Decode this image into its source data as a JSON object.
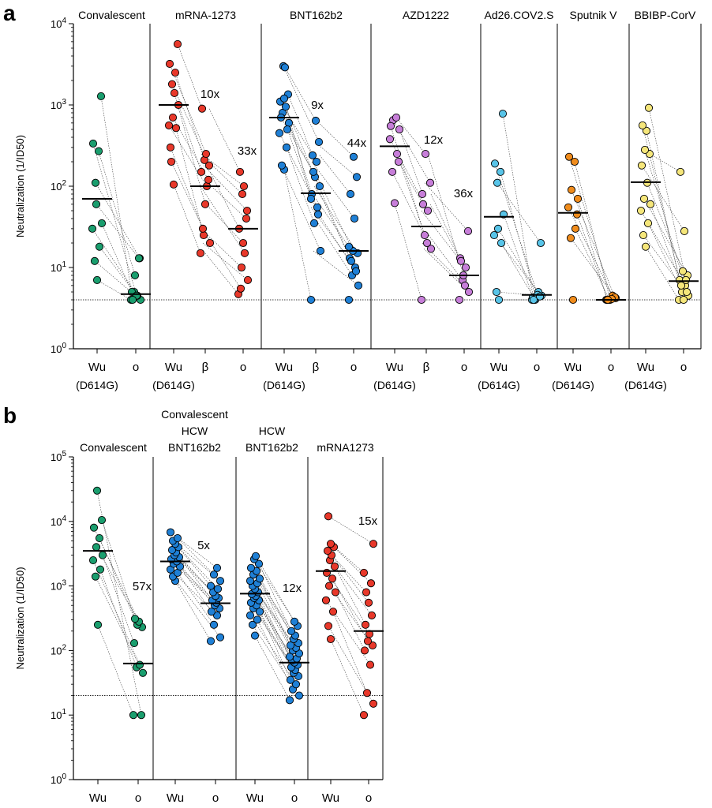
{
  "panels": [
    {
      "id": "a",
      "label": "a"
    },
    {
      "id": "b",
      "label": "b"
    }
  ],
  "chart_data": [
    {
      "type": "scatter",
      "panel": "a",
      "ylabel": "Neutralization (1/ID50)",
      "yscale": "log",
      "ylim": [
        1,
        10000
      ],
      "yticks": [
        {
          "v": 1,
          "m": "10",
          "e": "0"
        },
        {
          "v": 10,
          "m": "10",
          "e": "1"
        },
        {
          "v": 100,
          "m": "10",
          "e": "2"
        },
        {
          "v": 1000,
          "m": "10",
          "e": "3"
        },
        {
          "v": 10000,
          "m": "10",
          "e": "4"
        }
      ],
      "reference_line": 4,
      "groups": [
        {
          "name": "Convalescent",
          "color": "#1a9e6e",
          "cats": [
            "Wu",
            "o"
          ],
          "subs": [
            "(D614G)",
            ""
          ],
          "series": [
            [
              7,
              12,
              18,
              30,
              35,
              110,
              270,
              335,
              1280,
              60
            ],
            [
              4,
              4,
              5,
              4.5,
              5,
              13,
              8,
              4.5,
              4,
              13
            ]
          ],
          "medians": [
            70,
            4.7
          ],
          "folds": []
        },
        {
          "name": "mRNA-1273",
          "color": "#e8382a",
          "cats": [
            "Wu",
            "β",
            "o"
          ],
          "subs": [
            "(D614G)",
            "",
            ""
          ],
          "series": [
            [
              105,
              200,
              520,
              560,
              1000,
              1800,
              2500,
              3200,
              5600,
              700,
              1400,
              300
            ],
            [
              15,
              20,
              25,
              100,
              150,
              180,
              210,
              250,
              900,
              120,
              60,
              30
            ],
            [
              4.7,
              7,
              10,
              15,
              30,
              50,
              80,
              100,
              150,
              40,
              20,
              5.5
            ]
          ],
          "medians": [
            1000,
            100,
            30
          ],
          "folds": [
            "10x",
            "33x"
          ]
        },
        {
          "name": "BNT162b2",
          "color": "#1f80d6",
          "cats": [
            "Wu",
            "β",
            "o"
          ],
          "subs": [
            "(D614G)",
            "",
            ""
          ],
          "series": [
            [
              160,
              180,
              300,
              450,
              600,
              800,
              950,
              1100,
              1350,
              3000,
              2900,
              700,
              500,
              1200
            ],
            [
              4,
              16,
              35,
              55,
              80,
              100,
              130,
              200,
              240,
              350,
              640,
              150,
              45,
              70
            ],
            [
              4,
              6,
              8,
              10,
              13,
              15,
              16,
              40,
              80,
              130,
              230,
              12,
              9,
              18
            ]
          ],
          "medians": [
            700,
            82,
            16
          ],
          "folds": [
            "9x",
            "44x"
          ]
        },
        {
          "name": "AZD1222",
          "color": "#c77ed9",
          "cats": [
            "Wu",
            "β",
            "o"
          ],
          "subs": [
            "(D614G)",
            "",
            ""
          ],
          "series": [
            [
              62,
              150,
              250,
              380,
              500,
              650,
              700,
              550,
              200
            ],
            [
              4,
              17,
              25,
              50,
              80,
              110,
              250,
              20,
              60
            ],
            [
              4,
              5,
              7,
              10,
              13,
              28,
              8,
              6,
              12
            ]
          ],
          "medians": [
            310,
            32,
            8
          ],
          "folds": [
            "12x",
            "36x"
          ]
        },
        {
          "name": "Ad26.COV2.S",
          "color": "#58c4e8",
          "cats": [
            "Wu",
            "o"
          ],
          "subs": [
            "(D614G)",
            ""
          ],
          "series": [
            [
              4,
              5,
              20,
              25,
              45,
              110,
              150,
              190,
              780,
              30
            ],
            [
              4,
              4.5,
              4,
              5,
              4.3,
              20,
              4.2,
              4.6,
              4,
              4.4
            ]
          ],
          "medians": [
            42,
            4.6
          ],
          "folds": []
        },
        {
          "name": "Sputnik V",
          "color": "#f08c1c",
          "cats": [
            "Wu",
            "o"
          ],
          "subs": [
            "(D614G)",
            ""
          ],
          "series": [
            [
              4,
              23,
              30,
              55,
              70,
              90,
              200,
              230,
              45
            ],
            [
              4,
              4.2,
              4,
              4.5,
              4,
              4.3,
              4,
              4.1,
              4
            ]
          ],
          "medians": [
            47,
            4
          ],
          "folds": []
        },
        {
          "name": "BBIBP-CorV",
          "color": "#f5e67a",
          "cats": [
            "Wu",
            "o"
          ],
          "subs": [
            "(D614G)",
            ""
          ],
          "series": [
            [
              18,
              25,
              35,
              50,
              60,
              70,
              110,
              180,
              250,
              280,
              480,
              560,
              920
            ],
            [
              4,
              4.5,
              5,
              6,
              7,
              8,
              9,
              28,
              150,
              5,
              4,
              6,
              7
            ]
          ],
          "medians": [
            112,
            6.8
          ],
          "folds": []
        }
      ]
    },
    {
      "type": "scatter",
      "panel": "b",
      "ylabel": "Neutralization (1/ID50)",
      "yscale": "log",
      "ylim": [
        1,
        100000
      ],
      "yticks": [
        {
          "v": 1,
          "m": "10",
          "e": "0"
        },
        {
          "v": 10,
          "m": "10",
          "e": "1"
        },
        {
          "v": 100,
          "m": "10",
          "e": "2"
        },
        {
          "v": 1000,
          "m": "10",
          "e": "3"
        },
        {
          "v": 10000,
          "m": "10",
          "e": "4"
        },
        {
          "v": 100000,
          "m": "10",
          "e": "5"
        }
      ],
      "reference_line": 20,
      "groups": [
        {
          "name": "Convalescent",
          "color": "#1a9e6e",
          "cats": [
            "Wu",
            "o"
          ],
          "subs": [
            "",
            ""
          ],
          "series": [
            [
              250,
              1400,
              1800,
              2500,
              3000,
              4000,
              5500,
              8000,
              10500,
              30000
            ],
            [
              10,
              45,
              55,
              60,
              130,
              230,
              250,
              280,
              310,
              10
            ]
          ],
          "medians": [
            3500,
            63
          ],
          "folds": [
            "57x"
          ]
        },
        {
          "name": "Convalescent\nHCW\nBNT162b2",
          "color": "#1f80d6",
          "cats": [
            "Wu",
            "o"
          ],
          "subs": [
            "",
            ""
          ],
          "series": [
            [
              1200,
              1400,
              1600,
              1800,
              2000,
              2200,
              2400,
              2600,
              2800,
              3000,
              3300,
              3600,
              4000,
              4500,
              5000,
              5500,
              6800
            ],
            [
              140,
              160,
              250,
              350,
              400,
              450,
              500,
              550,
              600,
              650,
              700,
              800,
              900,
              1000,
              1200,
              1500,
              1900
            ]
          ],
          "medians": [
            2400,
            540
          ],
          "folds": [
            "5x"
          ]
        },
        {
          "name": "HCW\nBNT162b2",
          "color": "#1f80d6",
          "cats": [
            "Wu",
            "o"
          ],
          "subs": [
            "",
            ""
          ],
          "series": [
            [
              170,
              250,
              300,
              350,
              400,
              450,
              500,
              550,
              600,
              650,
              700,
              750,
              800,
              900,
              1000,
              1100,
              1200,
              1300,
              1500,
              1700,
              1900,
              2200,
              2600,
              2900
            ],
            [
              17,
              20,
              25,
              30,
              35,
              40,
              45,
              50,
              55,
              60,
              65,
              70,
              75,
              80,
              90,
              100,
              110,
              120,
              130,
              150,
              170,
              200,
              240,
              280
            ]
          ],
          "medians": [
            760,
            65
          ],
          "folds": [
            "12x"
          ]
        },
        {
          "name": "mRNA1273",
          "color": "#e8382a",
          "cats": [
            "Wu",
            "o"
          ],
          "subs": [
            "",
            ""
          ],
          "series": [
            [
              150,
              240,
              400,
              600,
              800,
              1000,
              1300,
              1600,
              2000,
              2500,
              3000,
              3500,
              4000,
              4500,
              12000
            ],
            [
              10,
              15,
              22,
              60,
              100,
              120,
              140,
              180,
              250,
              350,
              550,
              800,
              1100,
              1600,
              4500
            ]
          ],
          "medians": [
            1700,
            200
          ],
          "folds": [
            "15x"
          ]
        }
      ]
    }
  ]
}
